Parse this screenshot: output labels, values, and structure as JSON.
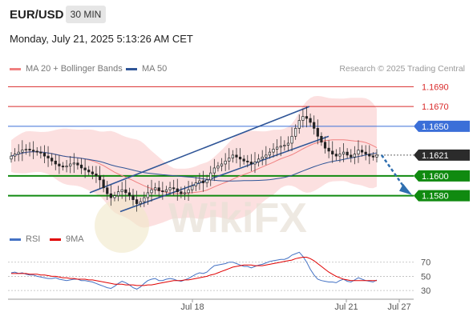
{
  "header": {
    "symbol": "EUR/USD",
    "timeframe": "30 MIN",
    "datetime": "Monday, July 21, 2025 5:13:26 AM CET"
  },
  "legend": {
    "ma20": "MA 20 + Bollinger Bands",
    "ma50": "MA 50",
    "ma20_color": "#f08080",
    "ma50_color": "#2f5597",
    "rsi": "RSI",
    "rsi_ma": "9MA",
    "rsi_color": "#4472c4",
    "rsi_ma_color": "#e00000"
  },
  "credit": "Research © 2025 Trading Central",
  "watermark": "WikiFX",
  "chart_data": [
    {
      "type": "candlestick",
      "title": "",
      "x_tick_labels": [
        "Jul 18",
        "Jul 21",
        "Jul 27"
      ],
      "ylim": [
        1.1545,
        1.17
      ],
      "levels": [
        {
          "label": "1.1690",
          "value": 1.169,
          "kind": "resistance",
          "color": "#d92b2b"
        },
        {
          "label": "1.1670",
          "value": 1.167,
          "kind": "resistance",
          "color": "#d92b2b"
        },
        {
          "label": "1.1650",
          "value": 1.165,
          "kind": "pivot",
          "color": "#3b6fd8"
        },
        {
          "label": "1.1621",
          "value": 1.1621,
          "kind": "last",
          "color": "#2b2b2b"
        },
        {
          "label": "1.1600",
          "value": 1.16,
          "kind": "support",
          "color": "#108a10"
        },
        {
          "label": "1.1580",
          "value": 1.158,
          "kind": "support",
          "color": "#108a10"
        }
      ],
      "close_series": [
        1.162,
        1.1622,
        1.1624,
        1.1626,
        1.1627,
        1.1626,
        1.1625,
        1.1624,
        1.1623,
        1.162,
        1.1618,
        1.1615,
        1.1612,
        1.161,
        1.1609,
        1.161,
        1.1612,
        1.1613,
        1.1611,
        1.1608,
        1.1606,
        1.1604,
        1.1602,
        1.16,
        1.1596,
        1.1588,
        1.1582,
        1.1578,
        1.158,
        1.1584,
        1.1586,
        1.1583,
        1.158,
        1.1576,
        1.1572,
        1.1574,
        1.1578,
        1.1583,
        1.1586,
        1.1588,
        1.1585,
        1.1584,
        1.1586,
        1.1588,
        1.1587,
        1.1584,
        1.1582,
        1.1583,
        1.1586,
        1.159,
        1.1593,
        1.1595,
        1.1593,
        1.1596,
        1.1603,
        1.1608,
        1.161,
        1.1612,
        1.1615,
        1.1618,
        1.1621,
        1.1619,
        1.1617,
        1.1615,
        1.1614,
        1.1612,
        1.1614,
        1.1617,
        1.1619,
        1.1621,
        1.1624,
        1.1627,
        1.1629,
        1.163,
        1.1631,
        1.1633,
        1.164,
        1.1648,
        1.1656,
        1.166,
        1.1658,
        1.1654,
        1.1648,
        1.164,
        1.1634,
        1.1628,
        1.1625,
        1.1622,
        1.162,
        1.1622,
        1.1624,
        1.1621,
        1.1619,
        1.1622,
        1.1626,
        1.1624,
        1.1622,
        1.162,
        1.1619,
        1.1621
      ],
      "forecast_arrow": "down"
    },
    {
      "type": "line",
      "title": "",
      "series": [
        {
          "name": "RSI",
          "values": [
            55,
            56,
            54,
            55,
            53,
            52,
            52,
            50,
            49,
            48,
            47,
            47,
            48,
            46,
            45,
            44,
            45,
            46,
            46,
            44,
            44,
            43,
            42,
            40,
            38,
            36,
            34,
            33,
            36,
            40,
            43,
            41,
            38,
            34,
            32,
            35,
            40,
            44,
            46,
            47,
            44,
            44,
            46,
            47,
            46,
            44,
            43,
            45,
            47,
            50,
            53,
            55,
            54,
            56,
            61,
            65,
            66,
            67,
            68,
            70,
            70,
            68,
            66,
            64,
            64,
            62,
            64,
            66,
            67,
            69,
            71,
            72,
            73,
            74,
            74,
            76,
            80,
            82,
            84,
            78,
            70,
            60,
            52,
            46,
            44,
            43,
            42,
            42,
            41,
            44,
            46,
            43,
            42,
            45,
            48,
            46,
            44,
            43,
            42,
            45
          ]
        },
        {
          "name": "9MA",
          "values": [
            54,
            54,
            54,
            54,
            54,
            53,
            53,
            53,
            52,
            52,
            51,
            50,
            50,
            49,
            48,
            48,
            47,
            47,
            46,
            46,
            46,
            45,
            45,
            44,
            43,
            42,
            41,
            40,
            39,
            39,
            39,
            38,
            38,
            38,
            37,
            37,
            37,
            38,
            38,
            39,
            40,
            41,
            42,
            43,
            44,
            44,
            44,
            45,
            45,
            46,
            47,
            48,
            49,
            50,
            52,
            53,
            55,
            57,
            59,
            61,
            63,
            64,
            65,
            66,
            66,
            66,
            65,
            65,
            65,
            66,
            67,
            68,
            69,
            70,
            71,
            72,
            73,
            75,
            76,
            77,
            77,
            75,
            72,
            68,
            64,
            60,
            56,
            53,
            50,
            48,
            46,
            45,
            44,
            44,
            44,
            44,
            44,
            44,
            44,
            44
          ]
        }
      ],
      "y_tick_labels": [
        "70",
        "50",
        "30"
      ],
      "ylim": [
        20,
        90
      ]
    }
  ]
}
